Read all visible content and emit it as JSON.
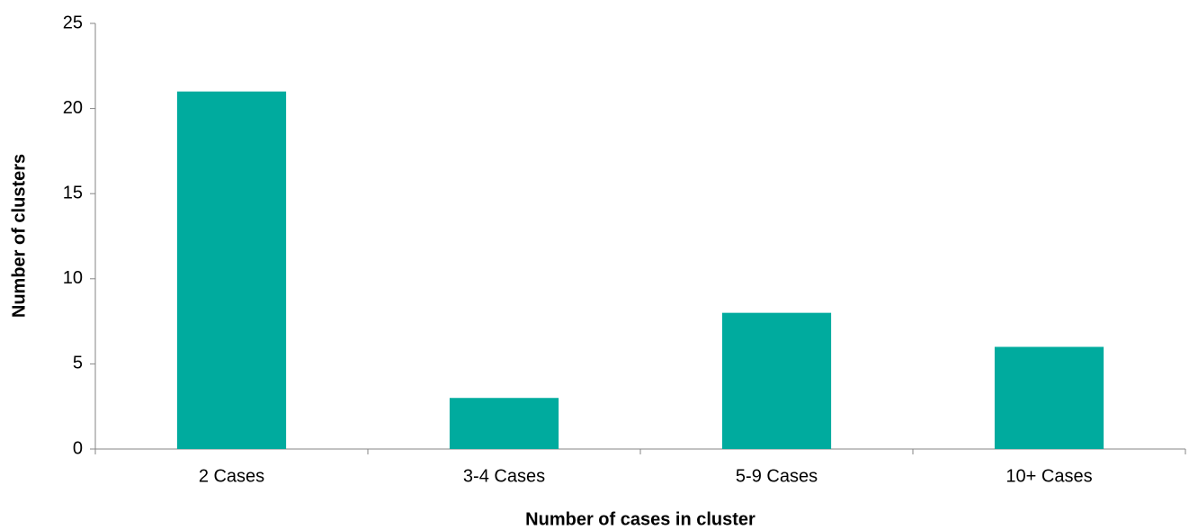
{
  "chart_data": {
    "type": "bar",
    "x_label": "Number of cases in cluster",
    "y_label": "Number of clusters",
    "categories": [
      "2 Cases",
      "3-4 Cases",
      "5-9 Cases",
      "10+ Cases"
    ],
    "values": [
      21,
      3,
      8,
      6
    ],
    "color": "#00ab9e",
    "ylim": [
      0,
      25
    ],
    "yticks": [
      0,
      5,
      10,
      15,
      20,
      25
    ],
    "grid": false
  }
}
